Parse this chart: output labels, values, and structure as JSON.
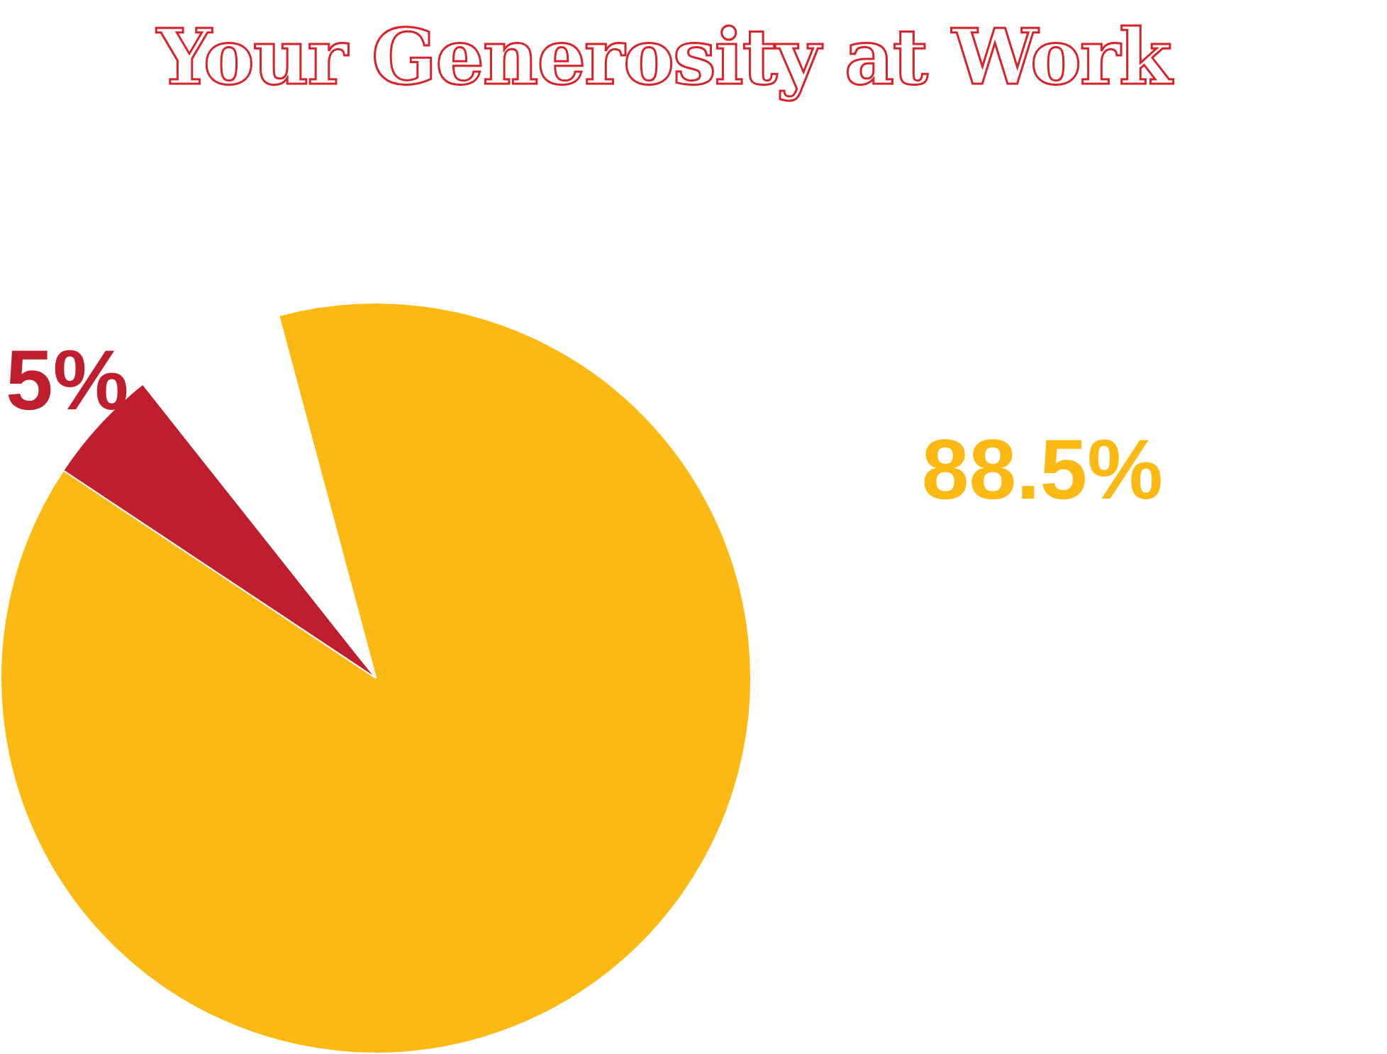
{
  "chart_data": {
    "type": "pie",
    "title": "Your Generosity at Work",
    "categories": [
      null,
      null,
      null
    ],
    "values": [
      88.5,
      5,
      6.5
    ],
    "colors": [
      "#fdb913",
      "#be1e2d",
      "#ffffff"
    ],
    "value_labels": [
      "88.5%",
      "5%",
      null
    ],
    "legend": false
  }
}
